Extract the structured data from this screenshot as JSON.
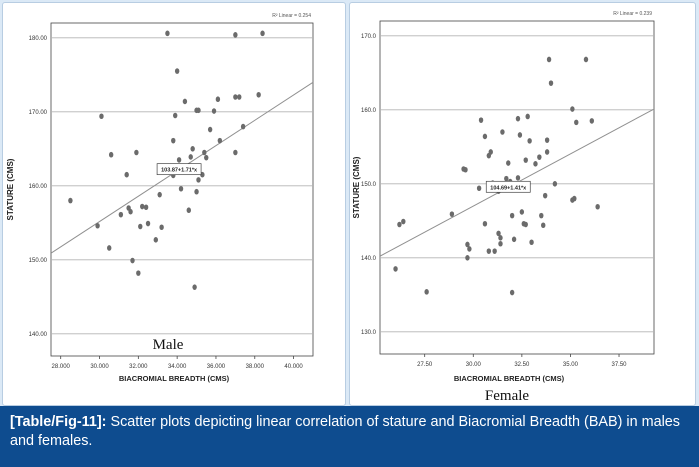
{
  "chart_data": [
    {
      "type": "scatter",
      "title": "",
      "caption": "Male",
      "xlabel": "BIACROMIAL BREADTH (CMS)",
      "ylabel": "STATURE (CMS)",
      "xlim": [
        27.5,
        41.0
      ],
      "ylim": [
        137.0,
        182.0
      ],
      "x_ticks": [
        28,
        30,
        32,
        34,
        36,
        38,
        40
      ],
      "x_tick_labels": [
        "28.000",
        "30.000",
        "32.000",
        "34.000",
        "36.000",
        "38.000",
        "40.000"
      ],
      "y_ticks": [
        140,
        150,
        160,
        170,
        180
      ],
      "y_tick_labels": [
        "140.00",
        "150.00",
        "160.00",
        "170.00",
        "180.00"
      ],
      "grid": "horizontal",
      "fit_line": {
        "intercept": 103.87,
        "slope": 1.71,
        "label": "103.87+1.71*x"
      },
      "r2_label": "R² Linear = 0.254",
      "points": [
        {
          "x": 28.5,
          "y": 158.0
        },
        {
          "x": 29.9,
          "y": 154.6
        },
        {
          "x": 30.1,
          "y": 169.4
        },
        {
          "x": 30.5,
          "y": 151.6
        },
        {
          "x": 30.6,
          "y": 164.2
        },
        {
          "x": 31.1,
          "y": 156.1
        },
        {
          "x": 31.4,
          "y": 161.5
        },
        {
          "x": 31.5,
          "y": 157.0
        },
        {
          "x": 31.6,
          "y": 156.5
        },
        {
          "x": 31.7,
          "y": 149.9
        },
        {
          "x": 31.9,
          "y": 164.5
        },
        {
          "x": 32.0,
          "y": 148.2
        },
        {
          "x": 32.1,
          "y": 154.5
        },
        {
          "x": 32.2,
          "y": 157.2
        },
        {
          "x": 32.4,
          "y": 157.1
        },
        {
          "x": 32.5,
          "y": 154.9
        },
        {
          "x": 32.9,
          "y": 152.7
        },
        {
          "x": 33.1,
          "y": 158.8
        },
        {
          "x": 33.2,
          "y": 154.4
        },
        {
          "x": 33.3,
          "y": 162.0
        },
        {
          "x": 33.5,
          "y": 180.6
        },
        {
          "x": 33.6,
          "y": 162.4
        },
        {
          "x": 33.8,
          "y": 161.4
        },
        {
          "x": 33.8,
          "y": 166.1
        },
        {
          "x": 33.9,
          "y": 169.5
        },
        {
          "x": 34.0,
          "y": 175.5
        },
        {
          "x": 34.1,
          "y": 163.5
        },
        {
          "x": 34.1,
          "y": 162.6
        },
        {
          "x": 34.2,
          "y": 159.6
        },
        {
          "x": 34.4,
          "y": 171.4
        },
        {
          "x": 34.6,
          "y": 156.7
        },
        {
          "x": 34.7,
          "y": 163.9
        },
        {
          "x": 34.8,
          "y": 165.0
        },
        {
          "x": 34.9,
          "y": 146.3
        },
        {
          "x": 35.0,
          "y": 159.2
        },
        {
          "x": 35.0,
          "y": 170.2
        },
        {
          "x": 35.1,
          "y": 170.2
        },
        {
          "x": 35.1,
          "y": 160.8
        },
        {
          "x": 35.3,
          "y": 161.5
        },
        {
          "x": 35.4,
          "y": 164.5
        },
        {
          "x": 35.5,
          "y": 163.8
        },
        {
          "x": 35.7,
          "y": 167.6
        },
        {
          "x": 35.9,
          "y": 170.1
        },
        {
          "x": 36.1,
          "y": 171.7
        },
        {
          "x": 36.2,
          "y": 166.1
        },
        {
          "x": 37.0,
          "y": 164.5
        },
        {
          "x": 37.0,
          "y": 172.0
        },
        {
          "x": 37.0,
          "y": 180.4
        },
        {
          "x": 37.2,
          "y": 172.0
        },
        {
          "x": 37.4,
          "y": 168.0
        },
        {
          "x": 38.2,
          "y": 172.3
        },
        {
          "x": 38.4,
          "y": 180.6
        }
      ]
    },
    {
      "type": "scatter",
      "title": "",
      "caption": "Female",
      "xlabel": "BIACROMIAL BREADTH (CMS)",
      "ylabel": "STATURE (CMS)",
      "xlim": [
        25.2,
        39.3
      ],
      "ylim": [
        127.0,
        172.0
      ],
      "x_ticks": [
        27.5,
        30.0,
        32.5,
        35.0,
        37.5
      ],
      "x_tick_labels": [
        "27.50",
        "30.00",
        "32.50",
        "35.00",
        "37.50"
      ],
      "y_ticks": [
        130,
        140,
        150,
        160,
        170
      ],
      "y_tick_labels": [
        "130.0",
        "140.0",
        "150.0",
        "160.0",
        "170.0"
      ],
      "grid": "horizontal",
      "fit_line": {
        "intercept": 104.69,
        "slope": 1.41,
        "label": "104.69+1.41*x"
      },
      "r2_label": "R² Linear = 0.239",
      "points": [
        {
          "x": 26.0,
          "y": 138.5
        },
        {
          "x": 26.2,
          "y": 144.5
        },
        {
          "x": 26.4,
          "y": 144.9
        },
        {
          "x": 27.6,
          "y": 135.4
        },
        {
          "x": 28.9,
          "y": 145.9
        },
        {
          "x": 29.5,
          "y": 152.0
        },
        {
          "x": 29.6,
          "y": 151.9
        },
        {
          "x": 29.7,
          "y": 140.0
        },
        {
          "x": 29.7,
          "y": 141.8
        },
        {
          "x": 29.8,
          "y": 141.2
        },
        {
          "x": 30.3,
          "y": 149.4
        },
        {
          "x": 30.4,
          "y": 158.6
        },
        {
          "x": 30.6,
          "y": 156.4
        },
        {
          "x": 30.6,
          "y": 144.6
        },
        {
          "x": 30.8,
          "y": 153.8
        },
        {
          "x": 30.8,
          "y": 140.9
        },
        {
          "x": 30.9,
          "y": 154.3
        },
        {
          "x": 31.0,
          "y": 150.1
        },
        {
          "x": 31.1,
          "y": 140.9
        },
        {
          "x": 31.3,
          "y": 149.0
        },
        {
          "x": 31.3,
          "y": 143.3
        },
        {
          "x": 31.4,
          "y": 141.9
        },
        {
          "x": 31.4,
          "y": 142.7
        },
        {
          "x": 31.5,
          "y": 157.0
        },
        {
          "x": 31.7,
          "y": 150.7
        },
        {
          "x": 31.8,
          "y": 152.8
        },
        {
          "x": 31.9,
          "y": 150.3
        },
        {
          "x": 32.0,
          "y": 145.7
        },
        {
          "x": 32.0,
          "y": 135.3
        },
        {
          "x": 32.1,
          "y": 142.5
        },
        {
          "x": 32.3,
          "y": 158.8
        },
        {
          "x": 32.3,
          "y": 150.8
        },
        {
          "x": 32.4,
          "y": 156.6
        },
        {
          "x": 32.5,
          "y": 146.2
        },
        {
          "x": 32.6,
          "y": 144.6
        },
        {
          "x": 32.7,
          "y": 153.2
        },
        {
          "x": 32.7,
          "y": 144.5
        },
        {
          "x": 32.8,
          "y": 159.1
        },
        {
          "x": 32.9,
          "y": 155.8
        },
        {
          "x": 33.0,
          "y": 142.1
        },
        {
          "x": 33.2,
          "y": 152.7
        },
        {
          "x": 33.4,
          "y": 153.6
        },
        {
          "x": 33.5,
          "y": 145.7
        },
        {
          "x": 33.6,
          "y": 144.4
        },
        {
          "x": 33.7,
          "y": 148.4
        },
        {
          "x": 33.8,
          "y": 154.3
        },
        {
          "x": 33.8,
          "y": 155.9
        },
        {
          "x": 33.9,
          "y": 166.8
        },
        {
          "x": 34.0,
          "y": 163.6
        },
        {
          "x": 34.2,
          "y": 150.0
        },
        {
          "x": 35.1,
          "y": 160.1
        },
        {
          "x": 35.1,
          "y": 147.8
        },
        {
          "x": 35.2,
          "y": 148.0
        },
        {
          "x": 35.3,
          "y": 158.3
        },
        {
          "x": 35.8,
          "y": 166.8
        },
        {
          "x": 36.1,
          "y": 158.5
        },
        {
          "x": 36.4,
          "y": 146.9
        }
      ]
    }
  ],
  "figure_caption": {
    "label": "[Table/Fig-11]:",
    "text": " Scatter plots depicting linear correlation of stature and Biacromial Breadth (BAB) in males and females."
  },
  "colors": {
    "point": "#6b6b6b",
    "fit_line": "#909090",
    "grid": "#b3b3b3",
    "caption_bg": "#0e4c8f",
    "frame_bg": "#dbe9f6"
  }
}
